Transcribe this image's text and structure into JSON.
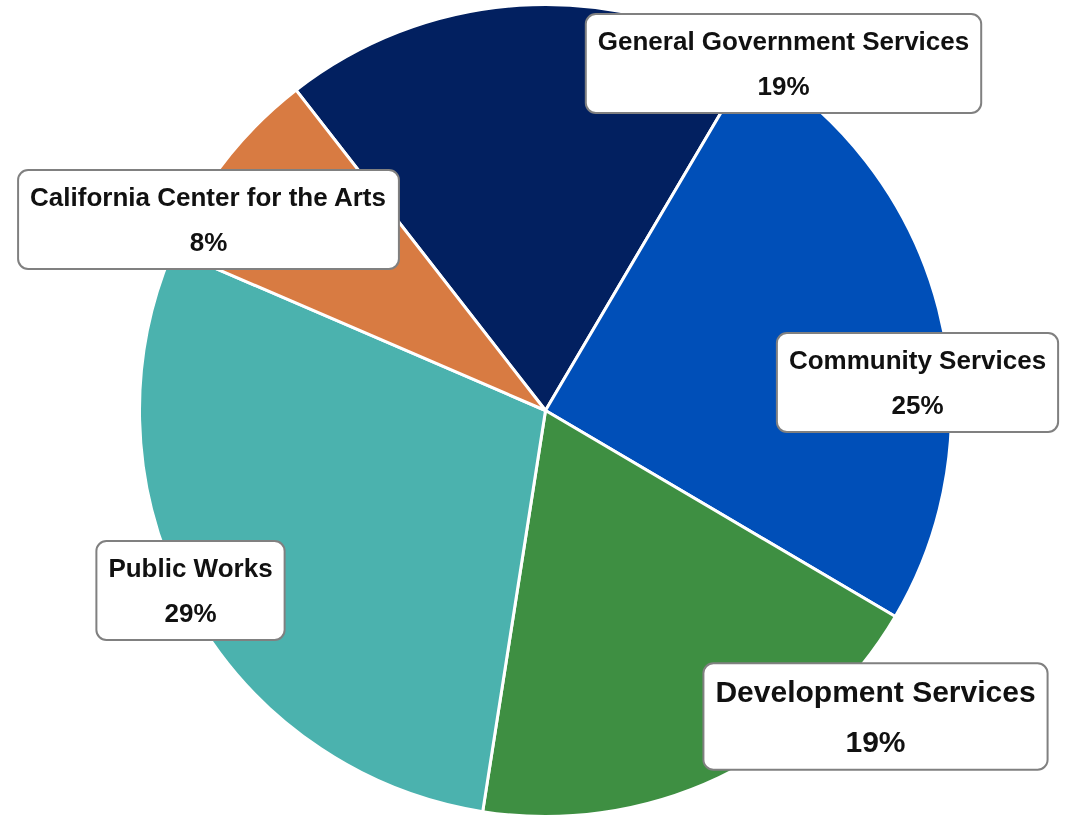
{
  "chart_data": {
    "type": "pie",
    "categories": [
      "General Government Services",
      "Community Services",
      "Development Services",
      "Public Works",
      "California Center for the Arts"
    ],
    "values": [
      19,
      25,
      19,
      29,
      8
    ],
    "colors": [
      "#022060",
      "#004fb8",
      "#3e8f42",
      "#4bb2ae",
      "#d87b42"
    ],
    "value_labels": [
      "19%",
      "25%",
      "19%",
      "29%",
      "8%"
    ]
  }
}
